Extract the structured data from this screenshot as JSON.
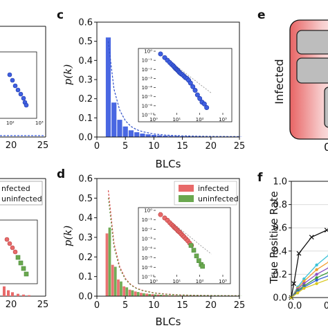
{
  "panels": {
    "c": {
      "label": "c"
    },
    "d": {
      "label": "d"
    },
    "e": {
      "label": "e",
      "row_label": "Infected",
      "partial_axis_text": "0"
    },
    "f": {
      "label": "f"
    }
  },
  "colors": {
    "blue": "#3f5fe0",
    "red": "#e86a6a",
    "green": "#6aa84f",
    "dark_green": "#4c8a3a"
  },
  "chart_data": [
    {
      "panel": "left-top-partial",
      "type": "line",
      "xlim": [
        0,
        25
      ],
      "x_ticks": [
        "20",
        "25"
      ],
      "inset": {
        "type": "scatter",
        "log_x": true,
        "log_y": true,
        "x_tick_labels": [
          "10²",
          "10³"
        ]
      }
    },
    {
      "panel": "c",
      "type": "bar",
      "xlabel": "BLCs",
      "ylabel": "p(k)",
      "xlim": [
        0,
        25
      ],
      "ylim": [
        0,
        0.6
      ],
      "x_ticks": [
        "0",
        "5",
        "10",
        "15",
        "20",
        "25"
      ],
      "y_ticks": [
        "0.0",
        "0.1",
        "0.2",
        "0.3",
        "0.4",
        "0.5",
        "0.6"
      ],
      "categories": [
        2,
        3,
        4,
        5,
        6,
        7,
        8,
        9,
        10,
        11,
        12,
        13,
        14,
        15,
        16,
        17,
        18,
        19,
        20,
        21,
        22,
        23,
        24,
        25
      ],
      "series": [
        {
          "values": [
            0.52,
            0.18,
            0.09,
            0.055,
            0.035,
            0.025,
            0.018,
            0.014,
            0.011,
            0.009,
            0.007,
            0.006,
            0.005,
            0.004,
            0.0035,
            0.003,
            0.0025,
            0.002,
            0.002,
            0.0015,
            0.0015,
            0.001,
            0.001,
            0.001
          ]
        }
      ],
      "fit_line": {
        "style": "dashed",
        "x": [
          2,
          3,
          4,
          5,
          6,
          7,
          8,
          10,
          12,
          15,
          18,
          21,
          25
        ],
        "y": [
          0.5,
          0.25,
          0.14,
          0.085,
          0.055,
          0.038,
          0.028,
          0.016,
          0.01,
          0.006,
          0.004,
          0.003,
          0.002
        ]
      },
      "inset": {
        "type": "scatter",
        "log_x": true,
        "log_y": true,
        "x_tick_labels": [
          "10⁰",
          "10¹",
          "10²",
          "10³"
        ],
        "y_tick_labels": [
          "10⁰",
          "10⁻¹",
          "10⁻²",
          "10⁻³",
          "10⁻⁴",
          "10⁻⁵",
          "10⁻⁶",
          "10⁻⁷"
        ],
        "xlim_exp": [
          0,
          3
        ],
        "ylim_exp": [
          -7,
          0
        ],
        "points_log10": [
          [
            0.3,
            -0.3
          ],
          [
            0.48,
            -0.7
          ],
          [
            0.6,
            -1.0
          ],
          [
            0.7,
            -1.25
          ],
          [
            0.78,
            -1.45
          ],
          [
            0.85,
            -1.6
          ],
          [
            0.9,
            -1.75
          ],
          [
            0.95,
            -1.9
          ],
          [
            1.0,
            -2.0
          ],
          [
            1.04,
            -2.1
          ],
          [
            1.08,
            -2.2
          ],
          [
            1.11,
            -2.3
          ],
          [
            1.15,
            -2.4
          ],
          [
            1.2,
            -2.5
          ],
          [
            1.26,
            -2.6
          ],
          [
            1.32,
            -2.75
          ],
          [
            1.38,
            -2.9
          ],
          [
            1.45,
            -3.0
          ],
          [
            1.52,
            -3.2
          ],
          [
            1.6,
            -3.5
          ],
          [
            1.7,
            -3.9
          ],
          [
            1.8,
            -4.3
          ],
          [
            1.9,
            -4.8
          ],
          [
            2.0,
            -5.2
          ],
          [
            2.1,
            -5.6
          ],
          [
            2.2,
            -5.8
          ],
          [
            2.3,
            -6.2
          ]
        ]
      }
    },
    {
      "panel": "left-bottom-partial",
      "type": "line",
      "xlim": [
        0,
        25
      ],
      "x_ticks": [
        "20",
        "25"
      ],
      "legend": [
        "infected",
        "uninfected"
      ],
      "legend_visible_text": [
        "nfected",
        "uninfected"
      ]
    },
    {
      "panel": "d",
      "type": "bar",
      "xlabel": "BLCs",
      "ylabel": "p(k)",
      "xlim": [
        0,
        25
      ],
      "ylim": [
        0,
        0.6
      ],
      "x_ticks": [
        "0",
        "5",
        "10",
        "15",
        "20",
        "25"
      ],
      "y_ticks": [
        "0.0",
        "0.1",
        "0.2",
        "0.3",
        "0.4",
        "0.5",
        "0.6"
      ],
      "categories": [
        2,
        3,
        4,
        5,
        6,
        7,
        8,
        9,
        10,
        11,
        12,
        13,
        14,
        15,
        16,
        17,
        18,
        19,
        20,
        21,
        22,
        23,
        24,
        25
      ],
      "legend_position": "top-right",
      "series": [
        {
          "name": "infected",
          "values": [
            0.32,
            0.16,
            0.085,
            0.05,
            0.033,
            0.024,
            0.017,
            0.013,
            0.01,
            0.008,
            0.006,
            0.005,
            0.004,
            0.0035,
            0.003,
            0.0025,
            0.002,
            0.002,
            0.0015,
            0.0015,
            0.001,
            0.001,
            0.001,
            0.001
          ]
        },
        {
          "name": "uninfected",
          "values": [
            0.35,
            0.15,
            0.075,
            0.045,
            0.03,
            0.021,
            0.015,
            0.011,
            0.009,
            0.007,
            0.0055,
            0.0045,
            0.0035,
            0.003,
            0.0025,
            0.002,
            0.0018,
            0.0015,
            0.0012,
            0.001,
            0.001,
            0.0008,
            0.0008,
            0.0006
          ]
        }
      ],
      "fit_lines": [
        {
          "style": "dashed",
          "color": "red",
          "x": [
            2,
            3,
            4,
            5,
            6,
            7,
            8,
            10,
            12,
            15,
            18,
            21,
            25
          ],
          "y": [
            0.54,
            0.27,
            0.15,
            0.09,
            0.058,
            0.04,
            0.03,
            0.017,
            0.011,
            0.006,
            0.004,
            0.003,
            0.002
          ]
        },
        {
          "style": "dashed",
          "color": "green",
          "x": [
            2,
            3,
            4,
            5,
            6,
            7,
            8,
            10,
            12,
            15,
            18,
            21,
            25
          ],
          "y": [
            0.5,
            0.25,
            0.14,
            0.085,
            0.055,
            0.038,
            0.028,
            0.016,
            0.01,
            0.006,
            0.004,
            0.003,
            0.002
          ]
        }
      ],
      "inset": {
        "type": "scatter",
        "log_x": true,
        "log_y": true,
        "x_tick_labels": [
          "10⁰",
          "10¹",
          "10²",
          "10³"
        ],
        "y_tick_labels": [
          "10⁰",
          "10⁻¹",
          "10⁻²",
          "10⁻³",
          "10⁻⁴",
          "10⁻⁵",
          "10⁻⁶",
          "10⁻⁷"
        ],
        "xlim_exp": [
          0,
          3
        ],
        "ylim_exp": [
          -7,
          0
        ],
        "infected_points_log10": [
          [
            0.3,
            -0.45
          ],
          [
            0.48,
            -0.8
          ],
          [
            0.6,
            -1.05
          ],
          [
            0.7,
            -1.3
          ],
          [
            0.78,
            -1.5
          ],
          [
            0.85,
            -1.65
          ],
          [
            0.9,
            -1.8
          ],
          [
            0.95,
            -1.9
          ],
          [
            1.0,
            -2.0
          ],
          [
            1.05,
            -2.15
          ],
          [
            1.1,
            -2.25
          ],
          [
            1.15,
            -2.35
          ],
          [
            1.2,
            -2.5
          ],
          [
            1.26,
            -2.65
          ],
          [
            1.32,
            -2.8
          ],
          [
            1.4,
            -3.0
          ],
          [
            1.48,
            -3.2
          ],
          [
            1.56,
            -3.45
          ],
          [
            1.64,
            -3.7
          ]
        ],
        "uninfected_points_log10": [
          [
            0.3,
            -0.45
          ],
          [
            0.48,
            -0.82
          ],
          [
            0.6,
            -1.1
          ],
          [
            0.7,
            -1.35
          ],
          [
            0.78,
            -1.55
          ],
          [
            0.85,
            -1.7
          ],
          [
            0.92,
            -1.85
          ],
          [
            1.0,
            -2.05
          ],
          [
            1.08,
            -2.25
          ],
          [
            1.16,
            -2.45
          ],
          [
            1.24,
            -2.65
          ],
          [
            1.32,
            -2.85
          ],
          [
            1.42,
            -3.1
          ],
          [
            1.52,
            -3.4
          ],
          [
            1.62,
            -3.7
          ],
          [
            1.74,
            -4.2
          ],
          [
            1.86,
            -4.8
          ],
          [
            1.96,
            -5.3
          ],
          [
            2.06,
            -5.7
          ],
          [
            2.12,
            -5.9
          ]
        ]
      }
    },
    {
      "panel": "f",
      "type": "line",
      "ylabel": "True Positive Rate",
      "ylim": [
        0,
        1.0
      ],
      "y_ticks": [
        "0.0",
        "0.2",
        "0.4",
        "0.6",
        "0.8",
        "1.0"
      ],
      "x_ticks": [
        "0.0",
        "0"
      ],
      "series": [
        {
          "color": "black",
          "x": [
            0,
            0.02,
            0.06,
            0.16,
            0.28
          ],
          "y": [
            0,
            0.12,
            0.38,
            0.52,
            0.58
          ]
        },
        {
          "color": "cyan",
          "x": [
            0,
            0.05,
            0.1,
            0.2,
            0.3
          ],
          "y": [
            0,
            0.09,
            0.16,
            0.28,
            0.37
          ]
        },
        {
          "color": "orange",
          "x": [
            0,
            0.05,
            0.1,
            0.2,
            0.3
          ],
          "y": [
            0,
            0.08,
            0.14,
            0.24,
            0.31
          ]
        },
        {
          "color": "purple",
          "x": [
            0,
            0.05,
            0.1,
            0.2,
            0.3
          ],
          "y": [
            0,
            0.07,
            0.12,
            0.2,
            0.26
          ]
        },
        {
          "color": "green",
          "x": [
            0,
            0.05,
            0.1,
            0.2,
            0.3
          ],
          "y": [
            0,
            0.06,
            0.1,
            0.17,
            0.22
          ]
        },
        {
          "color": "blue",
          "x": [
            0,
            0.05,
            0.1,
            0.2,
            0.3
          ],
          "y": [
            0,
            0.05,
            0.09,
            0.15,
            0.19
          ]
        },
        {
          "color": "yellow",
          "x": [
            0,
            0.05,
            0.1,
            0.2,
            0.3
          ],
          "y": [
            0,
            0.04,
            0.08,
            0.12,
            0.16
          ]
        }
      ]
    }
  ]
}
